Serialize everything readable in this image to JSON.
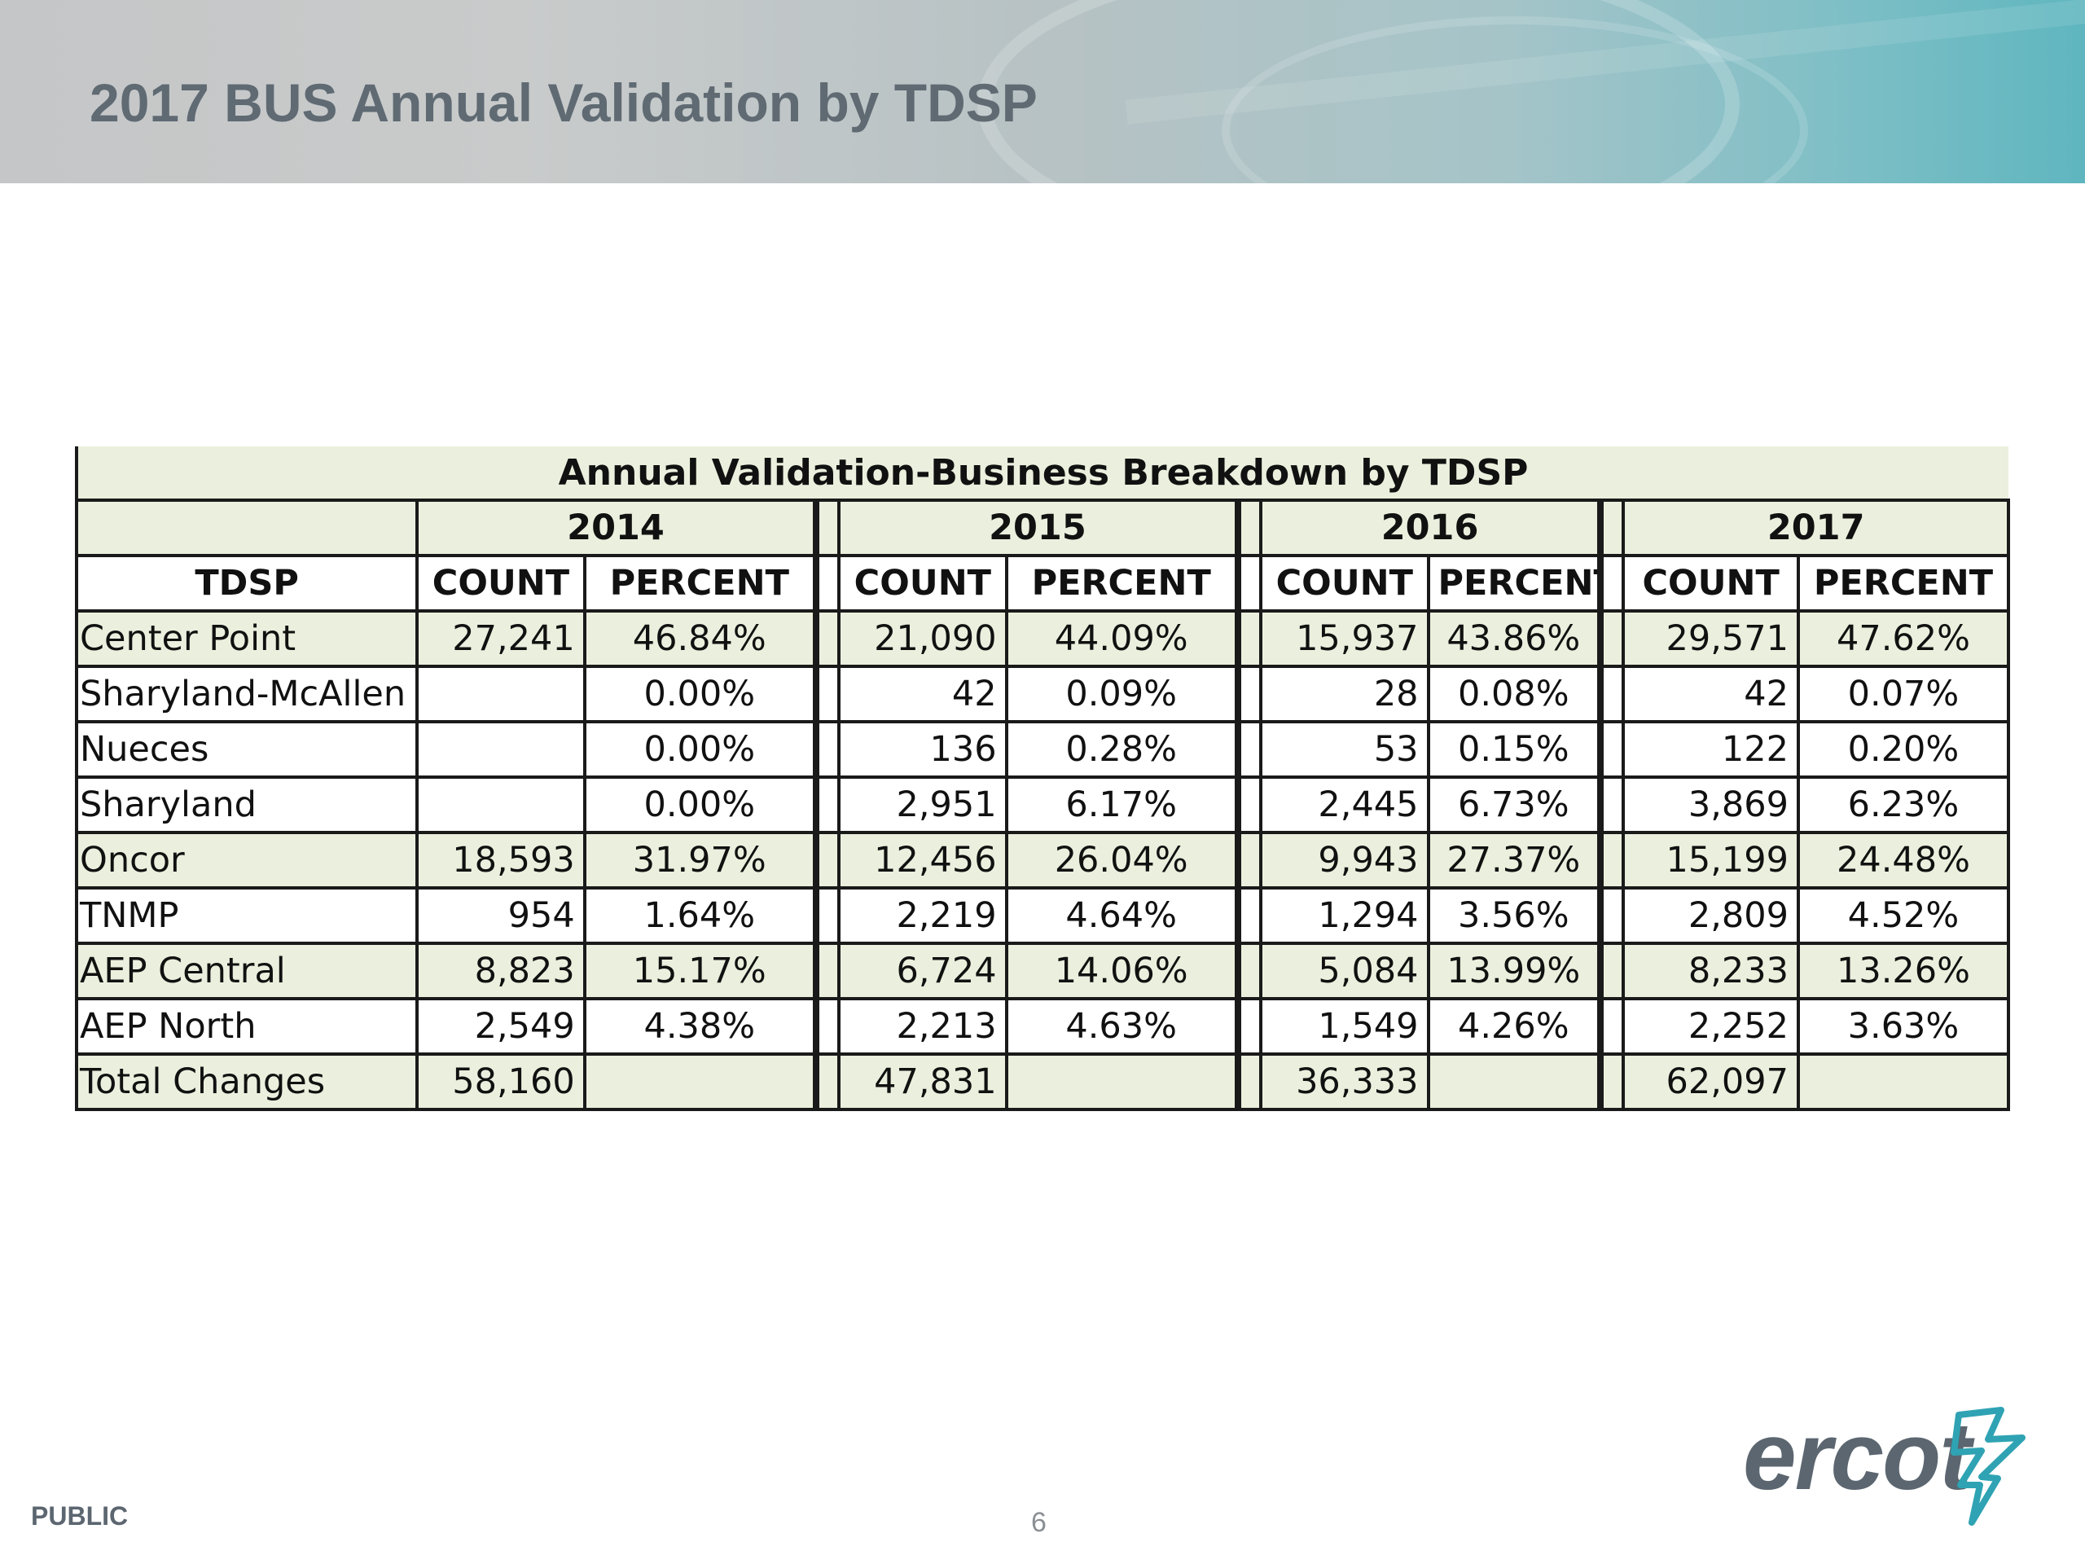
{
  "slide": {
    "title": "2017 BUS Annual Validation by TDSP",
    "footer_label": "PUBLIC",
    "page_number": "6",
    "logo_text": "ercot"
  },
  "table": {
    "caption": "Annual Validation-Business Breakdown by TDSP",
    "years": [
      "2014",
      "2015",
      "2016",
      "2017"
    ],
    "headers": {
      "tdsp": "TDSP",
      "count": "COUNT",
      "percent": "PERCENT"
    },
    "rows": [
      {
        "name": "Center Point",
        "values": [
          "27,241",
          "46.84%",
          "21,090",
          "44.09%",
          "15,937",
          "43.86%",
          "29,571",
          "47.62%"
        ]
      },
      {
        "name": "Sharyland-McAllen",
        "values": [
          "",
          "0.00%",
          "42",
          "0.09%",
          "28",
          "0.08%",
          "42",
          "0.07%"
        ]
      },
      {
        "name": "Nueces",
        "values": [
          "",
          "0.00%",
          "136",
          "0.28%",
          "53",
          "0.15%",
          "122",
          "0.20%"
        ]
      },
      {
        "name": "Sharyland",
        "values": [
          "",
          "0.00%",
          "2,951",
          "6.17%",
          "2,445",
          "6.73%",
          "3,869",
          "6.23%"
        ]
      },
      {
        "name": "Oncor",
        "values": [
          "18,593",
          "31.97%",
          "12,456",
          "26.04%",
          "9,943",
          "27.37%",
          "15,199",
          "24.48%"
        ]
      },
      {
        "name": "TNMP",
        "values": [
          "954",
          "1.64%",
          "2,219",
          "4.64%",
          "1,294",
          "3.56%",
          "2,809",
          "4.52%"
        ]
      },
      {
        "name": "AEP Central",
        "values": [
          "8,823",
          "15.17%",
          "6,724",
          "14.06%",
          "5,084",
          "13.99%",
          "8,233",
          "13.26%"
        ]
      },
      {
        "name": "AEP North",
        "values": [
          "2,549",
          "4.38%",
          "2,213",
          "4.63%",
          "1,549",
          "4.26%",
          "2,252",
          "3.63%"
        ]
      }
    ],
    "total": {
      "name": "Total Changes",
      "values": [
        "58,160",
        "",
        "47,831",
        "",
        "36,333",
        "",
        "62,097",
        ""
      ]
    }
  },
  "colors": {
    "shade": "#ebf0de",
    "title": "#5f6a73",
    "logo_accent": "#2fa3b3"
  }
}
